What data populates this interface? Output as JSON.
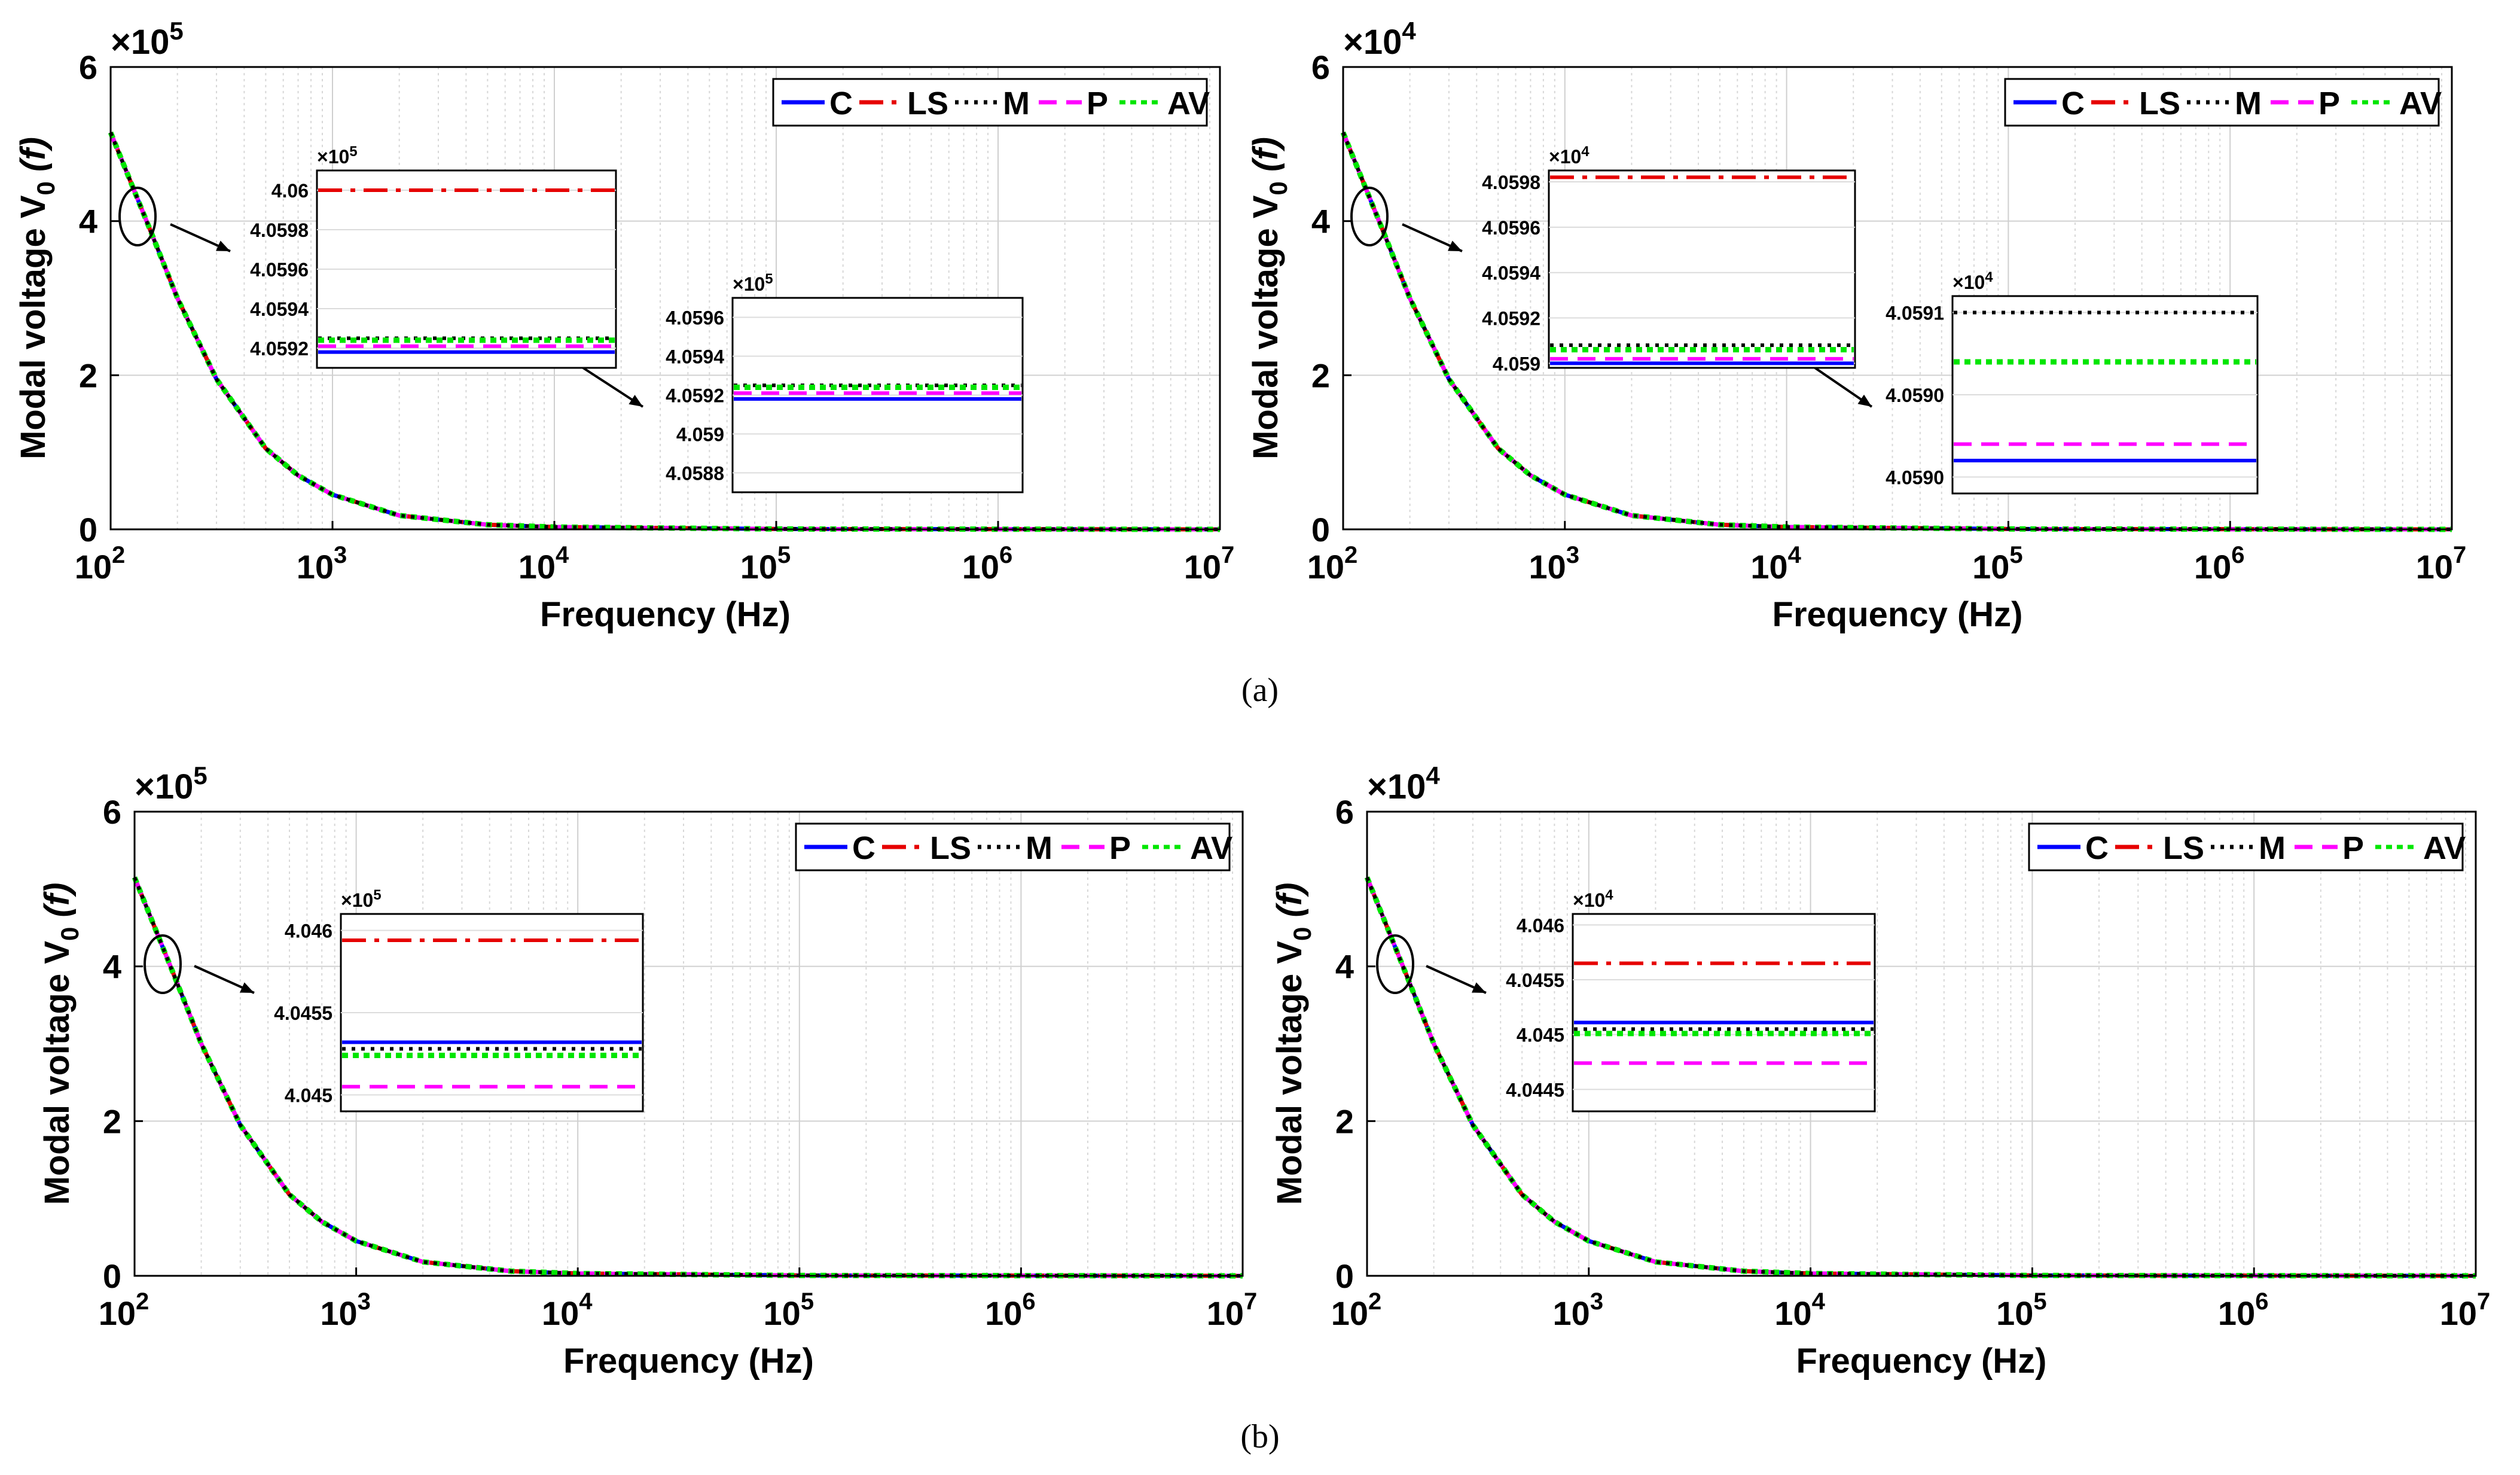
{
  "figure": {
    "caption_a": "(a)",
    "caption_b": "(b)"
  },
  "colors": {
    "C": "#0000ff",
    "LS": "#e60000",
    "M": "#000000",
    "P": "#ff00ff",
    "AV": "#00e600"
  },
  "legend": [
    "C",
    "LS",
    "M",
    "P",
    "AV"
  ],
  "chart_data": [
    {
      "id": "a-left",
      "type": "line",
      "xscale": "log",
      "xlim": [
        100,
        10000000
      ],
      "ylim": [
        0,
        6
      ],
      "exponent_label": "×10",
      "exponent": "5",
      "xlabel": "Frequency (Hz)",
      "ylabel": "Modal voltage V",
      "ylabel_sub": "0",
      "ylabel_arg": "(f)",
      "xticks": [
        100,
        1000,
        10000,
        100000,
        1000000,
        10000000
      ],
      "xtick_exponents": [
        "2",
        "3",
        "4",
        "5",
        "6",
        "7"
      ],
      "ytick_labels": [
        "0",
        "2",
        "4",
        "6"
      ],
      "curve": {
        "x": [
          100,
          150,
          200,
          300,
          500,
          700,
          1000,
          2000,
          5000,
          10000,
          100000,
          10000000
        ],
        "y": [
          5.15,
          3.9,
          3.0,
          1.95,
          1.05,
          0.7,
          0.45,
          0.18,
          0.06,
          0.03,
          0.005,
          0
        ]
      },
      "series": [
        "C",
        "LS",
        "M",
        "P",
        "AV"
      ],
      "insets": [
        {
          "exponent": "5",
          "ymin": 4.0591,
          "ymax": 4.0601,
          "ytick_labels": [
            "4.0592",
            "4.0594",
            "4.0596",
            "4.0598",
            "4.06"
          ],
          "yticks": [
            4.0592,
            4.0594,
            4.0596,
            4.0598,
            4.06
          ],
          "lines": {
            "LS": 4.06,
            "M": 4.05925,
            "AV": 4.05924,
            "P": 4.05921,
            "C": 4.05918
          }
        },
        {
          "exponent": "5",
          "ymin": 4.0587,
          "ymax": 4.0597,
          "ytick_labels": [
            "4.0588",
            "4.059",
            "4.0592",
            "4.0594",
            "4.0596"
          ],
          "yticks": [
            4.0588,
            4.059,
            4.0592,
            4.0594,
            4.0596
          ],
          "lines": {
            "M": 4.05925,
            "AV": 4.05924,
            "P": 4.05921,
            "C": 4.05918
          }
        }
      ]
    },
    {
      "id": "a-right",
      "type": "line",
      "xscale": "log",
      "xlim": [
        100,
        10000000
      ],
      "ylim": [
        0,
        6
      ],
      "exponent_label": "×10",
      "exponent": "4",
      "xlabel": "Frequency (Hz)",
      "ylabel": "Modal voltage V",
      "ylabel_sub": "0",
      "ylabel_arg": "(f)",
      "xticks": [
        100,
        1000,
        10000,
        100000,
        1000000,
        10000000
      ],
      "xtick_exponents": [
        "2",
        "3",
        "4",
        "5",
        "6",
        "7"
      ],
      "ytick_labels": [
        "0",
        "2",
        "4",
        "6"
      ],
      "curve": {
        "x": [
          100,
          150,
          200,
          300,
          500,
          700,
          1000,
          2000,
          5000,
          10000,
          100000,
          10000000
        ],
        "y": [
          5.15,
          3.9,
          3.0,
          1.95,
          1.05,
          0.7,
          0.45,
          0.18,
          0.06,
          0.03,
          0.005,
          0
        ]
      },
      "series": [
        "C",
        "LS",
        "M",
        "P",
        "AV"
      ],
      "insets": [
        {
          "exponent": "4",
          "ymin": 4.05898,
          "ymax": 4.05985,
          "ytick_labels": [
            "4.059",
            "4.0592",
            "4.0594",
            "4.0596",
            "4.0598"
          ],
          "yticks": [
            4.059,
            4.0592,
            4.0594,
            4.0596,
            4.0598
          ],
          "lines": {
            "LS": 4.05982,
            "M": 4.05908,
            "AV": 4.05906,
            "P": 4.05902,
            "C": 4.059
          }
        },
        {
          "exponent": "4",
          "ymin": 4.05899,
          "ymax": 4.05911,
          "ytick_labels": [
            "4.0590",
            "4.0590",
            "4.0591"
          ],
          "yticks": [
            4.059,
            4.05905,
            4.0591
          ],
          "lines": {
            "M": 4.0591,
            "AV": 4.05907,
            "P": 4.05902,
            "C": 4.05901
          }
        }
      ]
    },
    {
      "id": "b-left",
      "type": "line",
      "xscale": "log",
      "xlim": [
        100,
        10000000
      ],
      "ylim": [
        0,
        6
      ],
      "exponent_label": "×10",
      "exponent": "5",
      "xlabel": "Frequency (Hz)",
      "ylabel": "Modal voltage V",
      "ylabel_sub": "0",
      "ylabel_arg": "(f)",
      "xticks": [
        100,
        1000,
        10000,
        100000,
        1000000,
        10000000
      ],
      "xtick_exponents": [
        "2",
        "3",
        "4",
        "5",
        "6",
        "7"
      ],
      "ytick_labels": [
        "0",
        "2",
        "4",
        "6"
      ],
      "curve": {
        "x": [
          100,
          150,
          200,
          300,
          500,
          700,
          1000,
          2000,
          5000,
          10000,
          100000,
          10000000
        ],
        "y": [
          5.15,
          3.9,
          3.0,
          1.95,
          1.05,
          0.7,
          0.45,
          0.18,
          0.06,
          0.03,
          0.005,
          0
        ]
      },
      "series": [
        "C",
        "LS",
        "M",
        "P",
        "AV"
      ],
      "insets": [
        {
          "exponent": "5",
          "ymin": 4.0449,
          "ymax": 4.0461,
          "ytick_labels": [
            "4.045",
            "4.0455",
            "4.046"
          ],
          "yticks": [
            4.045,
            4.0455,
            4.046
          ],
          "lines": {
            "LS": 4.04594,
            "C": 4.04532,
            "M": 4.04528,
            "AV": 4.04524,
            "P": 4.04505
          }
        }
      ]
    },
    {
      "id": "b-right",
      "type": "line",
      "xscale": "log",
      "xlim": [
        100,
        10000000
      ],
      "ylim": [
        0,
        6
      ],
      "exponent_label": "×10",
      "exponent": "4",
      "xlabel": "Frequency (Hz)",
      "ylabel": "Modal voltage V",
      "ylabel_sub": "0",
      "ylabel_arg": "(f)",
      "xticks": [
        100,
        1000,
        10000,
        100000,
        1000000,
        10000000
      ],
      "xtick_exponents": [
        "2",
        "3",
        "4",
        "5",
        "6",
        "7"
      ],
      "ytick_labels": [
        "0",
        "2",
        "4",
        "6"
      ],
      "curve": {
        "x": [
          100,
          150,
          200,
          300,
          500,
          700,
          1000,
          2000,
          5000,
          10000,
          100000,
          10000000
        ],
        "y": [
          5.15,
          3.9,
          3.0,
          1.95,
          1.05,
          0.7,
          0.45,
          0.18,
          0.06,
          0.03,
          0.005,
          0
        ]
      },
      "series": [
        "C",
        "LS",
        "M",
        "P",
        "AV"
      ],
      "insets": [
        {
          "exponent": "4",
          "ymin": 4.0443,
          "ymax": 4.0461,
          "ytick_labels": [
            "4.0445",
            "4.045",
            "4.0455",
            "4.046"
          ],
          "yticks": [
            4.0445,
            4.045,
            4.0455,
            4.046
          ],
          "lines": {
            "LS": 4.04565,
            "C": 4.04511,
            "M": 4.04505,
            "AV": 4.04501,
            "P": 4.04474
          }
        }
      ]
    }
  ]
}
